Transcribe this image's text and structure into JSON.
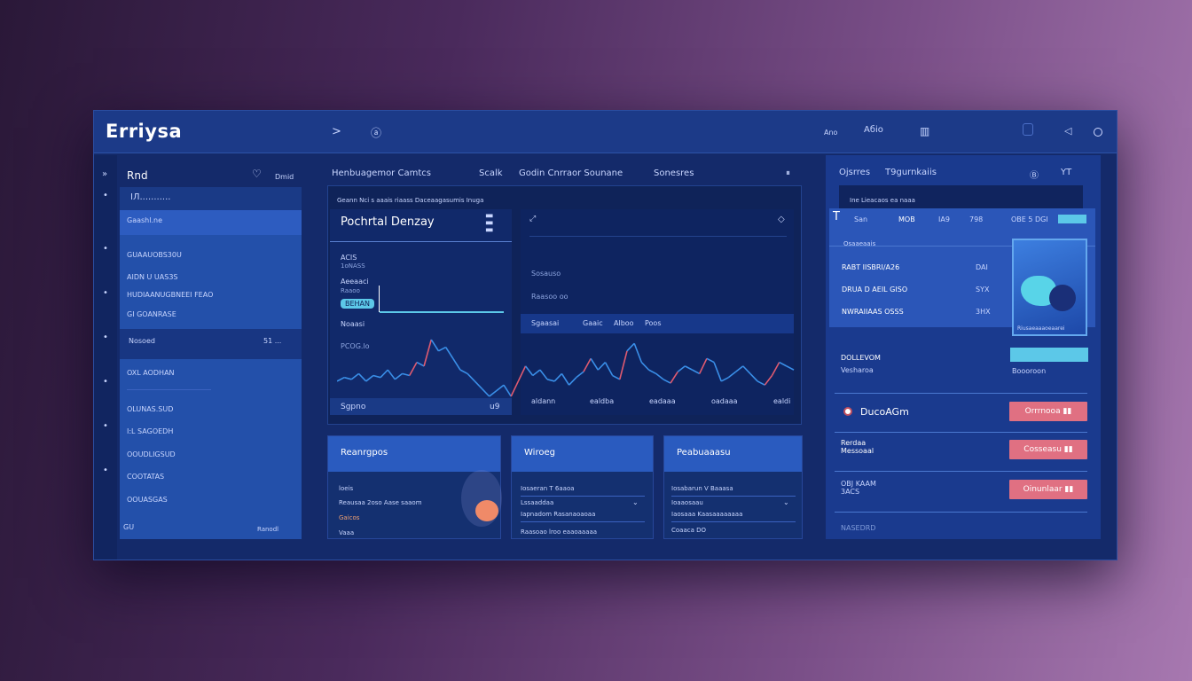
{
  "app": {
    "logo": "Erriysa"
  },
  "topbar": {
    "chevron": ">",
    "center_icon": "ⓐ",
    "right_label1": "Ano",
    "right_label2": "Aбio",
    "icon_grid": "▥"
  },
  "sidebar": {
    "header": "Rnd",
    "header_right": "Dmid",
    "search": "IЛ...........",
    "items": [
      {
        "label": "Gaashl.ne"
      },
      {
        "label": "GUAAUOBS30U"
      },
      {
        "label": "AIDN U UAS3S"
      },
      {
        "label": "HUDIAANUGBNEEI  FEAO"
      },
      {
        "label": "GI GOANRASE"
      },
      {
        "label": "Nosoed",
        "value": "51 ..."
      },
      {
        "label": "OXL AODHAN"
      },
      {
        "label": "OLUNAS.SUD"
      },
      {
        "label": "I:L SAGOEDH"
      },
      {
        "label": "OOUDLIGSUD"
      },
      {
        "label": "COOTATAS"
      },
      {
        "label": "OOUASGAS"
      }
    ],
    "footer_left": "GU",
    "footer_right": "Ranodl"
  },
  "center": {
    "tabs": [
      "Henbuagemor Camtcs",
      "Scalk",
      "Godin Cnrraor Sounane",
      "Sonesres"
    ],
    "subheader": "Geann Nci  s aaais riaass  Daceaagasumis Inuga",
    "panel_title": "Pochrtal Denzay",
    "left_labels": [
      "ACIS",
      "1oNASS",
      "Aeeaaci",
      "Raaoo",
      "PCOG.lo",
      "Noaasi"
    ],
    "pill": "BEHAN",
    "left_footer": "Sgpno",
    "left_footer_value": "u9",
    "right_labels": [
      "Sosauso",
      "Raasoo oo"
    ],
    "right_bar": [
      "Sgaasai",
      "Gaaic",
      "Alboo",
      "Poos"
    ],
    "x_labels": [
      "aldann",
      "ealdba",
      "eadaaa",
      "oadaaa",
      "ealdi"
    ],
    "series": [
      30,
      32,
      31,
      34,
      30,
      33,
      32,
      36,
      31,
      34,
      33,
      40,
      38,
      52,
      46,
      48,
      42,
      36,
      34,
      30,
      26,
      22,
      25,
      28,
      22,
      30,
      38,
      33,
      36,
      31,
      30,
      34,
      28,
      32,
      35,
      42,
      36,
      40,
      33,
      31,
      46,
      50,
      40,
      36,
      34,
      31,
      29,
      35,
      38,
      36,
      34,
      42,
      40,
      30,
      32,
      35,
      38,
      34,
      30,
      28,
      33,
      40,
      38,
      36
    ]
  },
  "cards": [
    {
      "title": "Reanrgpos",
      "rows": [
        "loeis",
        "Reausaa 2oso Aase saaom",
        "Gaicos",
        "Vaaa"
      ]
    },
    {
      "title": "Wiroeg",
      "rows": [
        "Iosaeran  T 6aaoa",
        "Lssaaddaa",
        "Iapnadom  Rasanaoaoaa",
        "Raasoao  lroo eaaoaaaaa"
      ]
    },
    {
      "title": "Peabuaaasu",
      "rows": [
        "Iosabarun  V Baaasa",
        "Ioaaosaau",
        "Iaosaaa Kaasaaaaaaaa",
        "Coaaca DO"
      ]
    }
  ],
  "right": {
    "tabs": [
      "Ojsrres",
      "T9gurnkaiis"
    ],
    "header_icons": [
      "Ⓑ",
      "YT"
    ],
    "subheader": "Ine  Lieacaos  ea naaa",
    "cols": [
      "San",
      "MOB",
      "IA9",
      "798",
      "OBE 5 DGI"
    ],
    "section": "Osaaeaais",
    "rows": [
      {
        "name": "RABT IISBRI/A26",
        "val": "DAI"
      },
      {
        "name": "DRUA D AEIL  GISO",
        "val": "SYX"
      },
      {
        "name": "NWRAIIAAS  OSSS",
        "val": "3HX"
      }
    ],
    "thumb_caption": "Riusaeaaaoeaarei",
    "status": {
      "title": "DOLLEVOM",
      "sub": "Vesharoa",
      "tag": "Boooroon"
    },
    "alerts": [
      {
        "title": "DucoAGm",
        "button": "Orrrnooa ▮▮"
      },
      {
        "title": "Rerdaa Messoaal",
        "button": "Cosseasu ▮▮"
      },
      {
        "title": "OBJ KAAM 3ACS",
        "button": "Oinunlaar ▮▮"
      }
    ],
    "footer": "NASEDRD"
  },
  "colors": {
    "accent": "#2a5bbf",
    "danger": "#e07082",
    "cyan": "#5cc8e8",
    "up": "#e05a70",
    "line": "#3a8fe8"
  }
}
